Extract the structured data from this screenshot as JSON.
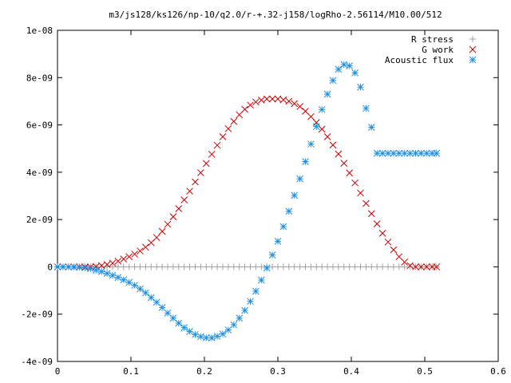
{
  "chart_data": {
    "type": "scatter",
    "title": "m3/js128/ks126/np-10/q2.0/r-+.32-j158/logRho-2.56114/M10.00/512",
    "xlabel": "",
    "ylabel": "",
    "xlim": [
      0,
      0.6
    ],
    "ylim": [
      -4e-09,
      1e-08
    ],
    "x_ticks": [
      0,
      0.1,
      0.2,
      0.3,
      0.4,
      0.5,
      0.6
    ],
    "x_tick_labels": [
      "0",
      "0.1",
      "0.2",
      "0.3",
      "0.4",
      "0.5",
      "0.6"
    ],
    "y_ticks": [
      -4e-09,
      -2e-09,
      0,
      2e-09,
      4e-09,
      6e-09,
      8e-09,
      1e-08
    ],
    "y_tick_labels": [
      "-4e-09",
      "-2e-09",
      "0",
      "2e-09",
      "4e-09",
      "6e-09",
      "8e-09",
      "1e-08"
    ],
    "grid": false,
    "legend_position": "top-right",
    "series": [
      {
        "name": "R stress",
        "marker": "plus",
        "color": "#a0a0a0",
        "x": [
          0.0,
          0.0075,
          0.015,
          0.0225,
          0.03,
          0.0375,
          0.045,
          0.0525,
          0.06,
          0.0675,
          0.075,
          0.0825,
          0.09,
          0.0975,
          0.105,
          0.1125,
          0.12,
          0.1275,
          0.135,
          0.1425,
          0.15,
          0.1575,
          0.165,
          0.1725,
          0.18,
          0.1875,
          0.195,
          0.2025,
          0.21,
          0.2175,
          0.225,
          0.2325,
          0.24,
          0.2475,
          0.255,
          0.2625,
          0.27,
          0.2775,
          0.285,
          0.2925,
          0.3,
          0.3075,
          0.315,
          0.3225,
          0.33,
          0.3375,
          0.345,
          0.3525,
          0.36,
          0.3675,
          0.375,
          0.3825,
          0.39,
          0.3975,
          0.405,
          0.4125,
          0.42,
          0.4275,
          0.435,
          0.4425,
          0.45,
          0.4575,
          0.465,
          0.4725,
          0.48,
          0.4875,
          0.495,
          0.5025,
          0.51,
          0.516
        ],
        "y": [
          0,
          0,
          0,
          0,
          0,
          0,
          0,
          0,
          0,
          0,
          0,
          0,
          0,
          0,
          0,
          0,
          0,
          0,
          0,
          0,
          0,
          0,
          0,
          0,
          0,
          0,
          0,
          0,
          0,
          0,
          0,
          0,
          0,
          0,
          0,
          0,
          0,
          0,
          0,
          0,
          0,
          0,
          0,
          0,
          0,
          0,
          0,
          0,
          0,
          0,
          0,
          0,
          0,
          0,
          0,
          0,
          0,
          0,
          0,
          0,
          0,
          0,
          0,
          0,
          0,
          0,
          0,
          0,
          0,
          0
        ]
      },
      {
        "name": "G work",
        "marker": "cross",
        "color": "#cc0000",
        "x": [
          0.0,
          0.0075,
          0.015,
          0.0225,
          0.03,
          0.0375,
          0.045,
          0.0525,
          0.06,
          0.0675,
          0.075,
          0.0825,
          0.09,
          0.0975,
          0.105,
          0.1125,
          0.12,
          0.1275,
          0.135,
          0.1425,
          0.15,
          0.1575,
          0.165,
          0.1725,
          0.18,
          0.1875,
          0.195,
          0.2025,
          0.21,
          0.2175,
          0.225,
          0.2325,
          0.24,
          0.2475,
          0.255,
          0.2625,
          0.27,
          0.2775,
          0.285,
          0.2925,
          0.3,
          0.3075,
          0.315,
          0.3225,
          0.33,
          0.3375,
          0.345,
          0.3525,
          0.36,
          0.3675,
          0.375,
          0.3825,
          0.39,
          0.3975,
          0.405,
          0.4125,
          0.42,
          0.4275,
          0.435,
          0.4425,
          0.45,
          0.4575,
          0.465,
          0.4725,
          0.48,
          0.4875,
          0.495,
          0.5025,
          0.51,
          0.516
        ],
        "y": [
          0,
          0,
          0,
          0,
          0,
          0,
          0,
          1e-11,
          5e-11,
          1e-10,
          1.6e-10,
          2.4e-10,
          3.3e-10,
          4.3e-10,
          5.4e-10,
          6.7e-10,
          8.3e-10,
          1.02e-09,
          1.24e-09,
          1.5e-09,
          1.8e-09,
          2.12e-09,
          2.46e-09,
          2.83e-09,
          3.2e-09,
          3.59e-09,
          3.98e-09,
          4.37e-09,
          4.76e-09,
          5.14e-09,
          5.5e-09,
          5.84e-09,
          6.15e-09,
          6.43e-09,
          6.66e-09,
          6.84e-09,
          6.97e-09,
          7.05e-09,
          7.1e-09,
          7.1e-09,
          7.1e-09,
          7.06e-09,
          7e-09,
          6.9e-09,
          6.78e-09,
          6.58e-09,
          6.35e-09,
          6.1e-09,
          5.82e-09,
          5.5e-09,
          5.15e-09,
          4.77e-09,
          4.38e-09,
          3.97e-09,
          3.55e-09,
          3.12e-09,
          2.68e-09,
          2.25e-09,
          1.82e-09,
          1.42e-09,
          1.05e-09,
          7.2e-10,
          4.3e-10,
          2e-10,
          5e-11,
          0,
          0,
          0,
          0,
          0
        ]
      },
      {
        "name": "Acoustic flux",
        "marker": "star",
        "color": "#1e8fe0",
        "x": [
          0.0,
          0.0075,
          0.015,
          0.0225,
          0.03,
          0.0375,
          0.045,
          0.0525,
          0.06,
          0.0675,
          0.075,
          0.0825,
          0.09,
          0.0975,
          0.105,
          0.1125,
          0.12,
          0.1275,
          0.135,
          0.1425,
          0.15,
          0.1575,
          0.165,
          0.1725,
          0.18,
          0.1875,
          0.195,
          0.2025,
          0.21,
          0.2175,
          0.225,
          0.2325,
          0.24,
          0.2475,
          0.255,
          0.2625,
          0.27,
          0.2775,
          0.285,
          0.2925,
          0.3,
          0.3075,
          0.315,
          0.3225,
          0.33,
          0.3375,
          0.345,
          0.3525,
          0.36,
          0.3675,
          0.375,
          0.3825,
          0.39,
          0.3975,
          0.405,
          0.4125,
          0.42,
          0.4275,
          0.435,
          0.4425,
          0.45,
          0.4575,
          0.465,
          0.4725,
          0.48,
          0.4875,
          0.495,
          0.5025,
          0.51,
          0.516
        ],
        "y": [
          0,
          0,
          0,
          -1e-11,
          -2e-11,
          -4e-11,
          -8e-11,
          -1.4e-10,
          -2e-10,
          -2.8e-10,
          -3.6e-10,
          -4.5e-10,
          -5.5e-10,
          -6.6e-10,
          -7.8e-10,
          -9.3e-10,
          -1.1e-09,
          -1.3e-09,
          -1.5e-09,
          -1.72e-09,
          -1.95e-09,
          -2.17e-09,
          -2.38e-09,
          -2.57e-09,
          -2.73e-09,
          -2.86e-09,
          -2.95e-09,
          -3e-09,
          -3e-09,
          -2.94e-09,
          -2.84e-09,
          -2.67e-09,
          -2.45e-09,
          -2.17e-09,
          -1.84e-09,
          -1.46e-09,
          -1.03e-09,
          -5.6e-10,
          -5e-11,
          5e-10,
          1.08e-09,
          1.7e-09,
          2.35e-09,
          3.02e-09,
          3.72e-09,
          4.45e-09,
          5.19e-09,
          5.93e-09,
          6.65e-09,
          7.3e-09,
          7.88e-09,
          8.35e-09,
          8.55e-09,
          8.5e-09,
          8.2e-09,
          7.6e-09,
          6.7e-09,
          5.9e-09,
          4.8e-09,
          4.8e-09,
          4.8e-09,
          4.8e-09,
          4.8e-09,
          4.8e-09,
          4.8e-09,
          4.8e-09,
          4.8e-09,
          4.8e-09,
          4.8e-09,
          4.8e-09
        ]
      }
    ]
  }
}
